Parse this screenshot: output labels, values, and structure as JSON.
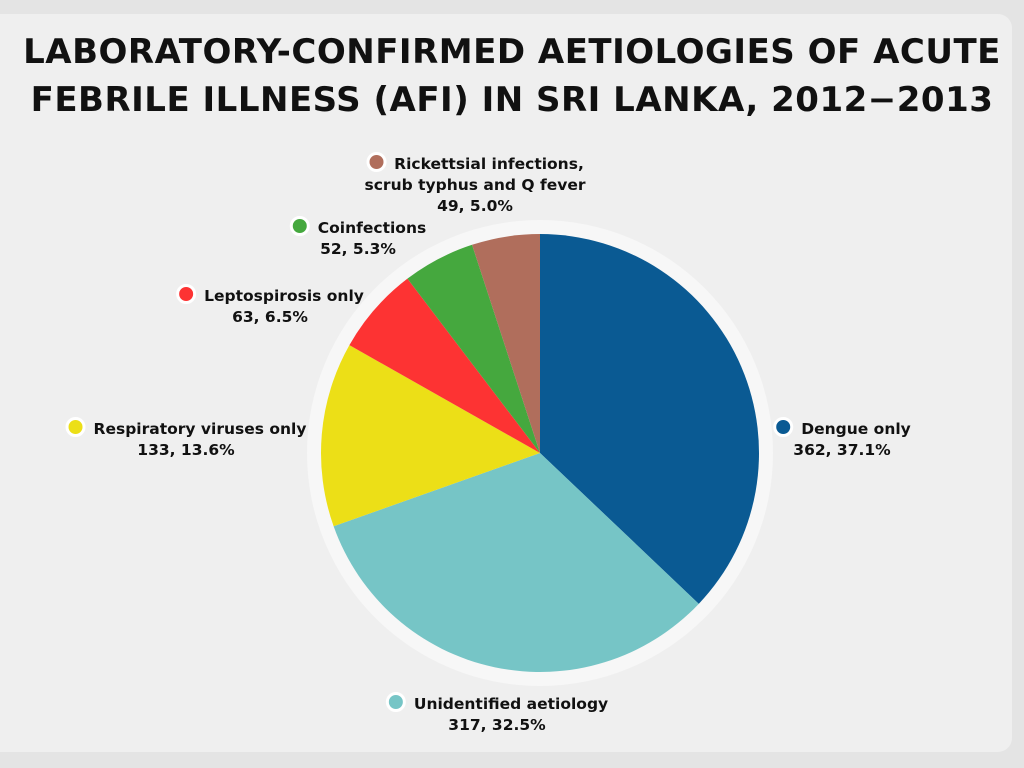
{
  "chart_data": {
    "type": "pie",
    "title": "LABORATORY-CONFIRMED AETIOLOGIES OF ACUTE FEBRILE ILLNESS (AFI) IN SRI LANKA, 2012−2013",
    "slices": [
      {
        "label": "Dengue only",
        "value": 362,
        "percent": "37.1%",
        "color": "#0a5a93"
      },
      {
        "label": "Unidentified aetiology",
        "value": 317,
        "percent": "32.5%",
        "color": "#76c5c6"
      },
      {
        "label": "Respiratory viruses only",
        "value": 133,
        "percent": "13.6%",
        "color": "#ecdf17"
      },
      {
        "label": "Leptospirosis only",
        "value": 63,
        "percent": "6.5%",
        "color": "#fd3333"
      },
      {
        "label": "Coinfections",
        "value": 52,
        "percent": "5.3%",
        "color": "#45a83e"
      },
      {
        "label": "Rickettsial infections, scrub typhus and Q fever",
        "value": 49,
        "percent": "5.0%",
        "color": "#b06e5c"
      }
    ],
    "legend": "labels-around-pie"
  }
}
